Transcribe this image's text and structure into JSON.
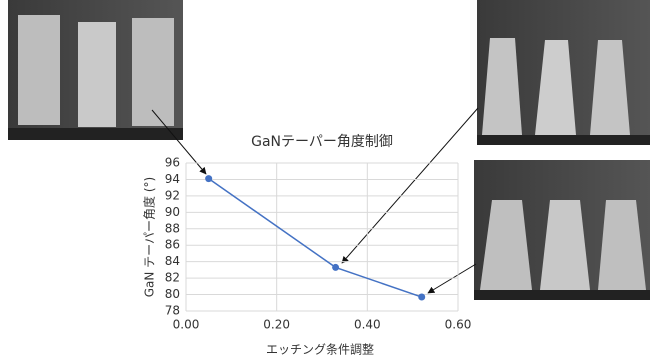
{
  "chart_data": {
    "type": "line",
    "title": "GaNテーパー角度制御",
    "x_label": "エッチング条件調整",
    "y_label": "GaN テーパー角度 (°)",
    "series": [
      {
        "color": "#4472c4",
        "x": [
          0.05,
          0.33,
          0.52
        ],
        "values": [
          94.1,
          83.3,
          79.7
        ]
      }
    ],
    "xlim": [
      0,
      0.6
    ],
    "xticks": [
      {
        "value": 0,
        "label": "0.00"
      },
      {
        "value": 0.2,
        "label": "0.20"
      },
      {
        "value": 0.4,
        "label": "0.40"
      },
      {
        "value": 0.6,
        "label": "0.60"
      }
    ],
    "ylim": [
      78,
      96
    ],
    "yticks": [
      78,
      80,
      82,
      84,
      86,
      88,
      90,
      92,
      94,
      96
    ],
    "grid": true
  }
}
